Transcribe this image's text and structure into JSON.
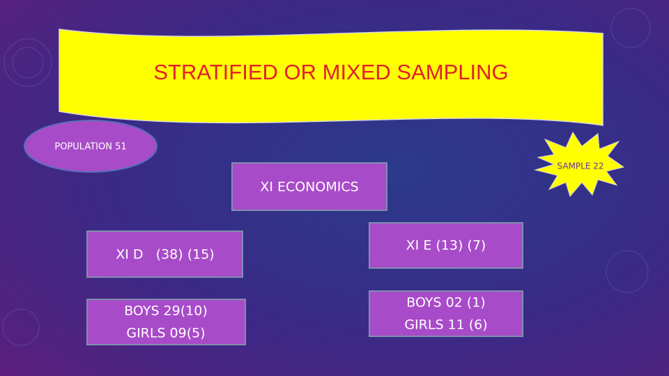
{
  "slide": {
    "title": "STRATIFIED OR MIXED SAMPLING",
    "population": "POPULATION 51",
    "sample": "SAMPLE 22",
    "root": "XI ECONOMICS",
    "left": {
      "class": "XI D   (38) (15)",
      "detail": [
        "BOYS 29(10)",
        "GIRLS 09(5)"
      ]
    },
    "right": {
      "class": "XI E (13) (7)",
      "detail": [
        "BOYS 02 (1)",
        "GIRLS 11 (6)"
      ]
    }
  }
}
